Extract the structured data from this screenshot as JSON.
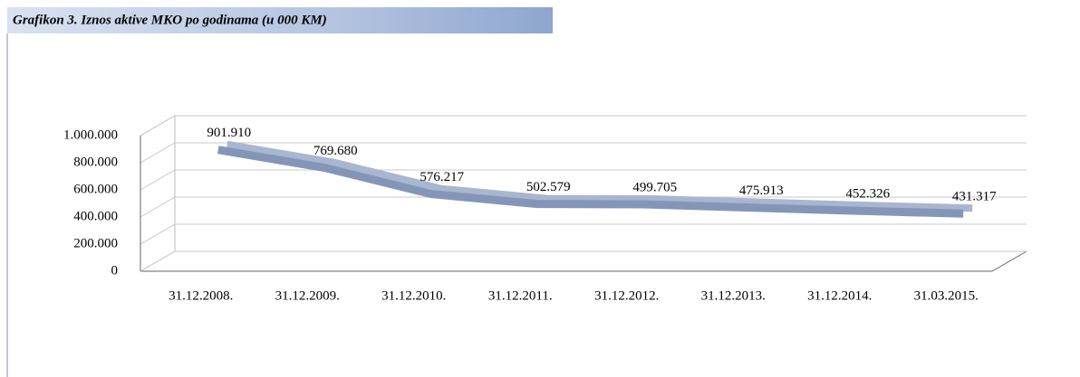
{
  "chart_data": {
    "type": "line3d",
    "title": "Grafikon 3. Iznos aktive MKO po godinama (u 000 KM)",
    "categories": [
      "31.12.2008.",
      "31.12.2009.",
      "31.12.2010.",
      "31.12.2011.",
      "31.12.2012.",
      "31.12.2013.",
      "31.12.2014.",
      "31.03.2015."
    ],
    "values": [
      901910,
      769680,
      576217,
      502579,
      499705,
      475913,
      452326,
      431317
    ],
    "value_labels": [
      "901.910",
      "769.680",
      "576.217",
      "502.579",
      "499.705",
      "475.913",
      "452.326",
      "431.317"
    ],
    "color": "#8496b8",
    "ylim": [
      0,
      1000000
    ],
    "yticks": [
      0,
      {
        "value": 200000,
        "label": "200.000"
      },
      {
        "value": 400000,
        "label": "400.000"
      },
      {
        "value": 600000,
        "label": "600.000"
      },
      {
        "value": 800000,
        "label": "800.000"
      },
      {
        "value": 1000000,
        "label": "1.000.000"
      }
    ],
    "grid": true
  }
}
